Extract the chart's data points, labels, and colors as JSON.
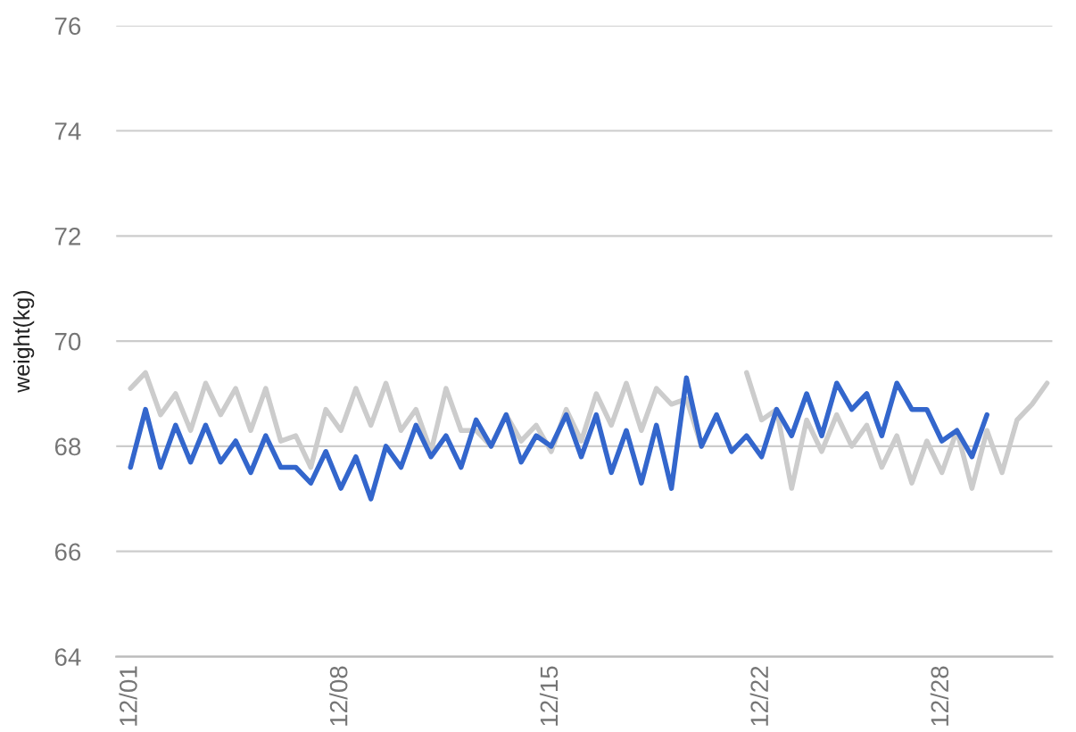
{
  "chart_data": {
    "type": "line",
    "ylabel": "weight(kg)",
    "categories": [
      "12/01",
      null,
      null,
      null,
      null,
      null,
      null,
      null,
      null,
      null,
      null,
      null,
      null,
      null,
      "12/08",
      null,
      null,
      null,
      null,
      null,
      null,
      null,
      null,
      null,
      null,
      null,
      null,
      null,
      "12/15",
      null,
      null,
      null,
      null,
      null,
      null,
      null,
      null,
      null,
      null,
      null,
      null,
      null,
      "12/22",
      null,
      null,
      null,
      null,
      null,
      null,
      null,
      null,
      null,
      null,
      null,
      "12/28",
      null,
      null,
      null,
      null,
      null,
      null,
      null
    ],
    "series": [
      {
        "color": "#cccccc",
        "values": [
          69.1,
          69.4,
          68.6,
          69.0,
          68.3,
          69.2,
          68.6,
          69.1,
          68.3,
          69.1,
          68.1,
          68.2,
          67.6,
          68.7,
          68.3,
          69.1,
          68.4,
          69.2,
          68.3,
          68.7,
          67.9,
          69.1,
          68.3,
          68.3,
          68.0,
          68.6,
          68.1,
          68.4,
          67.9,
          68.7,
          68.1,
          69.0,
          68.4,
          69.2,
          68.3,
          69.1,
          68.8,
          68.9,
          68.0,
          null,
          null,
          69.4,
          68.5,
          68.7,
          67.2,
          68.5,
          67.9,
          68.6,
          68.0,
          68.4,
          67.6,
          68.2,
          67.3,
          68.1,
          67.5,
          68.3,
          67.2,
          68.3,
          67.5,
          68.5,
          68.8,
          69.2
        ]
      },
      {
        "color": "#3366cc",
        "values": [
          67.6,
          68.7,
          67.6,
          68.4,
          67.7,
          68.4,
          67.7,
          68.1,
          67.5,
          68.2,
          67.6,
          67.6,
          67.3,
          67.9,
          67.2,
          67.8,
          67.0,
          68.0,
          67.6,
          68.4,
          67.8,
          68.2,
          67.6,
          68.5,
          68.0,
          68.6,
          67.7,
          68.2,
          68.0,
          68.6,
          67.8,
          68.6,
          67.5,
          68.3,
          67.3,
          68.4,
          67.2,
          69.3,
          68.0,
          68.6,
          67.9,
          68.2,
          67.8,
          68.7,
          68.2,
          69.0,
          68.2,
          69.2,
          68.7,
          69.0,
          68.2,
          69.2,
          68.7,
          68.7,
          68.1,
          68.3,
          67.8,
          68.6,
          null,
          null,
          null,
          null
        ]
      }
    ],
    "ylim": [
      64,
      76
    ],
    "yticks": [
      64,
      66,
      68,
      70,
      72,
      74,
      76
    ],
    "grid": "y",
    "marker": "none",
    "line_style": "solid"
  }
}
